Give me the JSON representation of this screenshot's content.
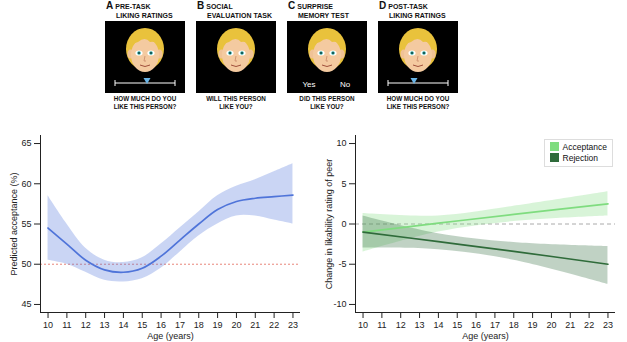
{
  "panels": [
    {
      "letter": "A",
      "title": [
        "PRE-TASK",
        "LIKING RATINGS"
      ],
      "question": [
        "HOW MUCH DO YOU",
        "LIKE THIS PERSON?"
      ],
      "slider": true
    },
    {
      "letter": "B",
      "title": [
        "SOCIAL",
        "EVALUATION TASK"
      ],
      "question": [
        "WILL THIS PERSON",
        "LIKE YOU?"
      ],
      "slider": false
    },
    {
      "letter": "C",
      "title": [
        "SURPRISE",
        "MEMORY TEST"
      ],
      "question": [
        "DID THIS PERSON",
        "LIKE YOU?"
      ],
      "slider": false,
      "options": [
        "Yes",
        "No"
      ]
    },
    {
      "letter": "D",
      "title": [
        "POST-TASK",
        "LIKING RATINGS"
      ],
      "question": [
        "HOW MUCH DO YOU",
        "LIKE THIS PERSON?"
      ],
      "slider": true
    }
  ],
  "chart_data": [
    {
      "type": "line",
      "x_label": "Age (years)",
      "y_label": "Predicted acceptance (%)",
      "x": [
        10,
        11,
        12,
        13,
        14,
        15,
        16,
        17,
        18,
        19,
        20,
        21,
        22,
        23
      ],
      "series": [
        {
          "color": "#4f74d9",
          "values": [
            54.5,
            52.5,
            50.5,
            49.3,
            49,
            49.5,
            51,
            53,
            55,
            56.8,
            57.8,
            58.2,
            58.4,
            58.6
          ],
          "lower": [
            50.5,
            50,
            49,
            48,
            47.8,
            48.2,
            49.5,
            51.5,
            53.5,
            55,
            56,
            56,
            55.5,
            55
          ],
          "upper": [
            58.5,
            55,
            52,
            50.5,
            50.2,
            50.8,
            52.5,
            54.5,
            56.5,
            58.5,
            59.7,
            60.5,
            61.5,
            62.5
          ]
        }
      ],
      "reference_lines": [
        {
          "value": 50,
          "color": "#e8857a",
          "line_style": "dotted"
        }
      ],
      "xlim": [
        9.6,
        23.4
      ],
      "xticks": [
        10,
        11,
        12,
        13,
        14,
        15,
        16,
        17,
        18,
        19,
        20,
        21,
        22,
        23
      ],
      "ylim": [
        44,
        66
      ],
      "yticks": [
        45,
        50,
        55,
        60,
        65
      ],
      "grid": false
    },
    {
      "type": "line",
      "x_label": "Age (years)",
      "y_label": "Change in likability rating of peer",
      "x": [
        10,
        14,
        18,
        23
      ],
      "series": [
        {
          "name": "Acceptance",
          "color": "#7fdc7f",
          "values": [
            -1,
            0.1,
            1.2,
            2.5
          ],
          "lower": [
            -3.5,
            -1,
            0.3,
            1
          ],
          "upper": [
            1.3,
            1,
            2.2,
            4
          ]
        },
        {
          "name": "Rejection",
          "color": "#2f6b3a",
          "values": [
            -1,
            -2.2,
            -3.4,
            -5
          ],
          "lower": [
            -3,
            -3.2,
            -4.5,
            -7.5
          ],
          "upper": [
            1,
            -1.2,
            -2.3,
            -2.8
          ]
        }
      ],
      "reference_lines": [
        {
          "value": 0,
          "color": "#aaaaaa",
          "line_style": "dashed"
        }
      ],
      "legend": "top-right",
      "xlim": [
        9.6,
        23.4
      ],
      "xticks": [
        10,
        11,
        12,
        13,
        14,
        15,
        16,
        17,
        18,
        19,
        20,
        21,
        22,
        23
      ],
      "ylim": [
        -11,
        11
      ],
      "yticks": [
        -10,
        -5,
        0,
        5,
        10
      ],
      "grid": false
    }
  ]
}
